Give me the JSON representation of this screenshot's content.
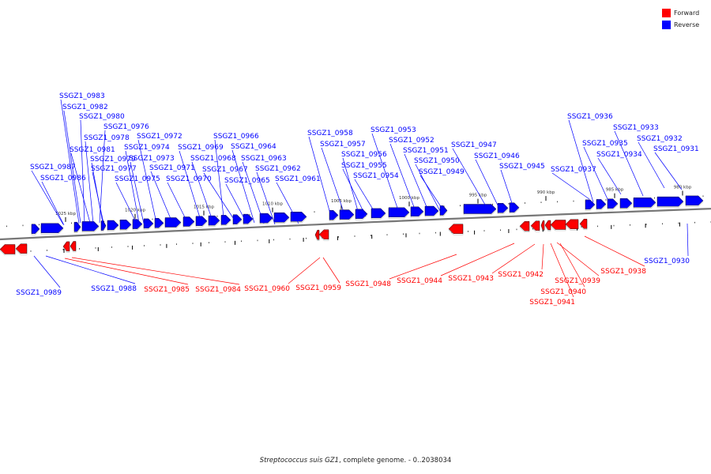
{
  "legend": {
    "forward_label": "Forward",
    "reverse_label": "Reverse",
    "forward_color": "#ff0000",
    "reverse_color": "#0000ff"
  },
  "caption": {
    "species": "Streptococcus suis GZ1",
    "rest": ", complete genome. - 0..2038034"
  },
  "kbp_ticks": [
    "1025 kbp",
    "1020 kbp",
    "1015 kbp",
    "1010 kbp",
    "1005 kbp",
    "1000 kbp",
    "995 kbp",
    "990 kbp",
    "985 kbp",
    "980 kbp"
  ],
  "genes": [
    {
      "label": "SSGZ1_0983",
      "strand": "reverse"
    },
    {
      "label": "SSGZ1_0982",
      "strand": "reverse"
    },
    {
      "label": "SSGZ1_0980",
      "strand": "reverse"
    },
    {
      "label": "SSGZ1_0976",
      "strand": "reverse"
    },
    {
      "label": "SSGZ1_0978",
      "strand": "reverse"
    },
    {
      "label": "SSGZ1_0972",
      "strand": "reverse"
    },
    {
      "label": "SSGZ1_0974",
      "strand": "reverse"
    },
    {
      "label": "SSGZ1_0981",
      "strand": "reverse"
    },
    {
      "label": "SSGZ1_0979",
      "strand": "reverse"
    },
    {
      "label": "SSGZ1_0973",
      "strand": "reverse"
    },
    {
      "label": "SSGZ1_0987",
      "strand": "reverse"
    },
    {
      "label": "SSGZ1_0977",
      "strand": "reverse"
    },
    {
      "label": "SSGZ1_0971",
      "strand": "reverse"
    },
    {
      "label": "SSGZ1_0986",
      "strand": "reverse"
    },
    {
      "label": "SSGZ1_0975",
      "strand": "reverse"
    },
    {
      "label": "SSGZ1_0970",
      "strand": "reverse"
    },
    {
      "label": "SSGZ1_0966",
      "strand": "reverse"
    },
    {
      "label": "SSGZ1_0969",
      "strand": "reverse"
    },
    {
      "label": "SSGZ1_0964",
      "strand": "reverse"
    },
    {
      "label": "SSGZ1_0968",
      "strand": "reverse"
    },
    {
      "label": "SSGZ1_0963",
      "strand": "reverse"
    },
    {
      "label": "SSGZ1_0967",
      "strand": "reverse"
    },
    {
      "label": "SSGZ1_0962",
      "strand": "reverse"
    },
    {
      "label": "SSGZ1_0965",
      "strand": "reverse"
    },
    {
      "label": "SSGZ1_0961",
      "strand": "reverse"
    },
    {
      "label": "SSGZ1_0958",
      "strand": "reverse"
    },
    {
      "label": "SSGZ1_0957",
      "strand": "reverse"
    },
    {
      "label": "SSGZ1_0956",
      "strand": "reverse"
    },
    {
      "label": "SSGZ1_0955",
      "strand": "reverse"
    },
    {
      "label": "SSGZ1_0954",
      "strand": "reverse"
    },
    {
      "label": "SSGZ1_0953",
      "strand": "reverse"
    },
    {
      "label": "SSGZ1_0952",
      "strand": "reverse"
    },
    {
      "label": "SSGZ1_0951",
      "strand": "reverse"
    },
    {
      "label": "SSGZ1_0950",
      "strand": "reverse"
    },
    {
      "label": "SSGZ1_0949",
      "strand": "reverse"
    },
    {
      "label": "SSGZ1_0947",
      "strand": "reverse"
    },
    {
      "label": "SSGZ1_0946",
      "strand": "reverse"
    },
    {
      "label": "SSGZ1_0945",
      "strand": "reverse"
    },
    {
      "label": "SSGZ1_0936",
      "strand": "reverse"
    },
    {
      "label": "SSGZ1_0933",
      "strand": "reverse"
    },
    {
      "label": "SSGZ1_0935",
      "strand": "reverse"
    },
    {
      "label": "SSGZ1_0932",
      "strand": "reverse"
    },
    {
      "label": "SSGZ1_0934",
      "strand": "reverse"
    },
    {
      "label": "SSGZ1_0931",
      "strand": "reverse"
    },
    {
      "label": "SSGZ1_0937",
      "strand": "reverse"
    },
    {
      "label": "SSGZ1_0930",
      "strand": "reverse"
    },
    {
      "label": "SSGZ1_0989",
      "strand": "reverse"
    },
    {
      "label": "SSGZ1_0988",
      "strand": "reverse"
    },
    {
      "label": "SSGZ1_0985",
      "strand": "forward"
    },
    {
      "label": "SSGZ1_0984",
      "strand": "forward"
    },
    {
      "label": "SSGZ1_0960",
      "strand": "forward"
    },
    {
      "label": "SSGZ1_0959",
      "strand": "forward"
    },
    {
      "label": "SSGZ1_0948",
      "strand": "forward"
    },
    {
      "label": "SSGZ1_0944",
      "strand": "forward"
    },
    {
      "label": "SSGZ1_0943",
      "strand": "forward"
    },
    {
      "label": "SSGZ1_0942",
      "strand": "forward"
    },
    {
      "label": "SSGZ1_0939",
      "strand": "forward"
    },
    {
      "label": "SSGZ1_0940",
      "strand": "forward"
    },
    {
      "label": "SSGZ1_0941",
      "strand": "forward"
    },
    {
      "label": "SSGZ1_0938",
      "strand": "forward"
    }
  ]
}
